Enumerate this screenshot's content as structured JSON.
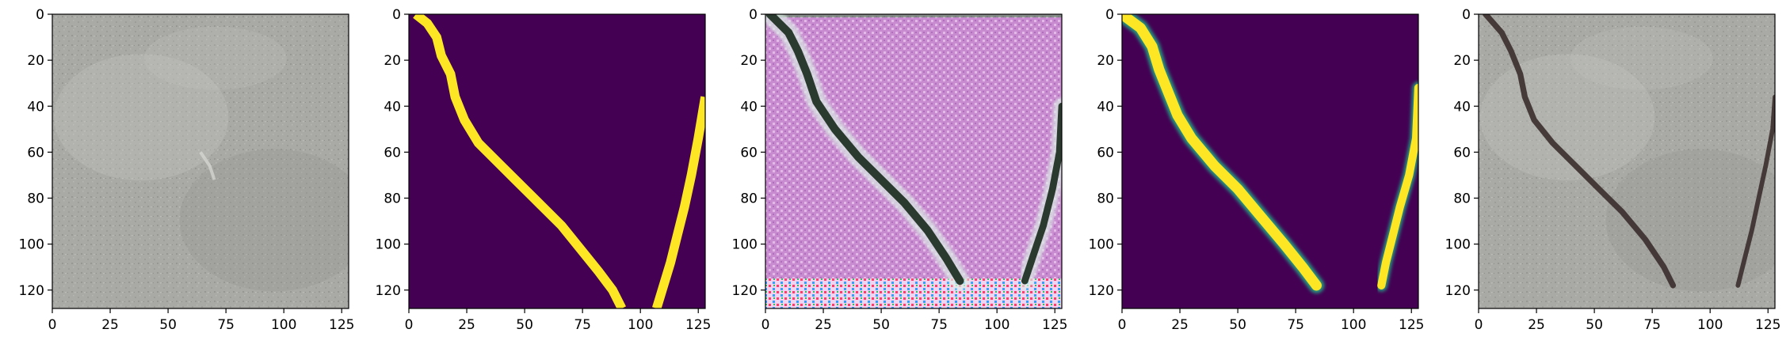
{
  "chart_data": [
    {
      "type": "heatmap",
      "content": "grayscale concrete surface image, no visible crack",
      "x": {
        "min": 0,
        "max": 128,
        "ticks": [
          0,
          25,
          50,
          75,
          100,
          125
        ]
      },
      "y": {
        "min": 0,
        "max": 128,
        "ticks": [
          0,
          20,
          40,
          60,
          80,
          100,
          120
        ],
        "inverted": true
      },
      "palette": {
        "base": "#a9aaa5",
        "dark": "#8f918c",
        "light": "#c4c5c0"
      },
      "crack_paths": []
    },
    {
      "type": "heatmap",
      "content": "binary crack mask (viridis colormap)",
      "x": {
        "min": 0,
        "max": 128,
        "ticks": [
          0,
          25,
          50,
          75,
          100,
          125
        ]
      },
      "y": {
        "min": 0,
        "max": 128,
        "ticks": [
          0,
          20,
          40,
          60,
          80,
          100,
          120
        ],
        "inverted": true
      },
      "palette": {
        "background": "#440154",
        "crack": "#fde725"
      },
      "crack_paths": [
        {
          "points": [
            [
              3,
              0
            ],
            [
              8,
              4
            ],
            [
              12,
              10
            ],
            [
              14,
              18
            ],
            [
              18,
              26
            ],
            [
              20,
              36
            ],
            [
              24,
              46
            ],
            [
              30,
              56
            ],
            [
              38,
              64
            ],
            [
              46,
              72
            ],
            [
              56,
              82
            ],
            [
              66,
              92
            ],
            [
              74,
              102
            ],
            [
              82,
              112
            ],
            [
              88,
              120
            ],
            [
              92,
              128
            ]
          ],
          "width": 4
        },
        {
          "points": [
            [
              107,
              128
            ],
            [
              110,
              118
            ],
            [
              113,
              108
            ],
            [
              116,
              96
            ],
            [
              119,
              84
            ],
            [
              122,
              70
            ],
            [
              125,
              54
            ],
            [
              128,
              36
            ]
          ],
          "width": 4
        }
      ]
    },
    {
      "type": "heatmap",
      "content": "generated crack image (pink/magenta artifact texture)",
      "x": {
        "min": 0,
        "max": 128,
        "ticks": [
          0,
          25,
          50,
          75,
          100,
          125
        ]
      },
      "y": {
        "min": 0,
        "max": 128,
        "ticks": [
          0,
          20,
          40,
          60,
          80,
          100,
          120
        ],
        "inverted": true
      },
      "palette": {
        "base": "#c98bd0",
        "light": "#e3b9e8",
        "crack": "#2b3a2e",
        "halo": "#dcf0e6"
      },
      "crack_paths": [
        {
          "points": [
            [
              2,
              0
            ],
            [
              10,
              8
            ],
            [
              14,
              16
            ],
            [
              18,
              26
            ],
            [
              22,
              38
            ],
            [
              30,
              50
            ],
            [
              40,
              62
            ],
            [
              50,
              72
            ],
            [
              60,
              82
            ],
            [
              70,
              94
            ],
            [
              78,
              106
            ],
            [
              84,
              116
            ]
          ],
          "width": 3.5
        },
        {
          "points": [
            [
              112,
              116
            ],
            [
              116,
              104
            ],
            [
              120,
              92
            ],
            [
              124,
              76
            ],
            [
              127,
              60
            ],
            [
              128,
              40
            ]
          ],
          "width": 3
        }
      ]
    },
    {
      "type": "heatmap",
      "content": "predicted crack mask (viridis colormap, soft edges)",
      "x": {
        "min": 0,
        "max": 128,
        "ticks": [
          0,
          25,
          50,
          75,
          100,
          125
        ]
      },
      "y": {
        "min": 0,
        "max": 128,
        "ticks": [
          0,
          20,
          40,
          60,
          80,
          100,
          120
        ],
        "inverted": true
      },
      "palette": {
        "background": "#440154",
        "crack": "#fde725",
        "edge": "#22a884"
      },
      "crack_paths": [
        {
          "points": [
            [
              0,
              0
            ],
            [
              8,
              6
            ],
            [
              13,
              14
            ],
            [
              16,
              24
            ],
            [
              20,
              34
            ],
            [
              24,
              44
            ],
            [
              30,
              54
            ],
            [
              40,
              66
            ],
            [
              50,
              76
            ],
            [
              60,
              88
            ],
            [
              70,
              100
            ],
            [
              78,
              110
            ],
            [
              84,
              118
            ]
          ],
          "width": 4.5
        },
        {
          "points": [
            [
              112,
              118
            ],
            [
              114,
              108
            ],
            [
              117,
              96
            ],
            [
              120,
              84
            ],
            [
              124,
              70
            ],
            [
              127,
              54
            ],
            [
              128,
              32
            ]
          ],
          "width": 3.5
        }
      ]
    },
    {
      "type": "heatmap",
      "content": "concrete image with synthesized crack overlay",
      "x": {
        "min": 0,
        "max": 128,
        "ticks": [
          0,
          25,
          50,
          75,
          100,
          125
        ]
      },
      "y": {
        "min": 0,
        "max": 128,
        "ticks": [
          0,
          20,
          40,
          60,
          80,
          100,
          120
        ],
        "inverted": true
      },
      "palette": {
        "base": "#a9aaa5",
        "dark": "#8f918c",
        "light": "#c4c5c0",
        "crack": "#3a2e2c"
      },
      "crack_paths": [
        {
          "points": [
            [
              3,
              0
            ],
            [
              10,
              8
            ],
            [
              14,
              16
            ],
            [
              18,
              26
            ],
            [
              20,
              36
            ],
            [
              24,
              46
            ],
            [
              32,
              56
            ],
            [
              42,
              66
            ],
            [
              52,
              76
            ],
            [
              62,
              86
            ],
            [
              72,
              98
            ],
            [
              80,
              110
            ],
            [
              84,
              118
            ]
          ],
          "width": 2.5
        },
        {
          "points": [
            [
              112,
              118
            ],
            [
              115,
              106
            ],
            [
              118,
              94
            ],
            [
              121,
              80
            ],
            [
              124,
              66
            ],
            [
              127,
              50
            ],
            [
              128,
              36
            ]
          ],
          "width": 2
        }
      ]
    }
  ]
}
